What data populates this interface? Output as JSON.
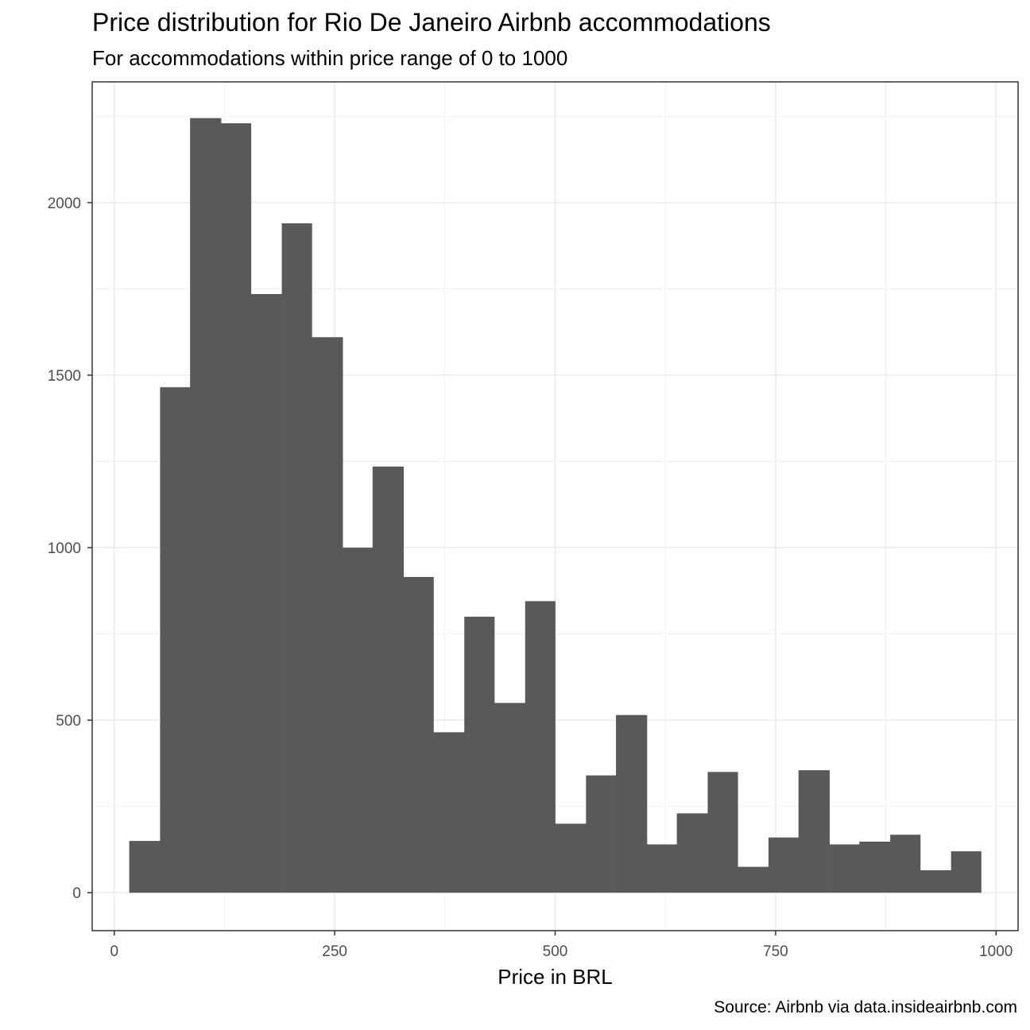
{
  "chart_data": {
    "type": "bar",
    "title": "Price distribution for Rio De Janeiro Airbnb accommodations",
    "subtitle": "For accommodations within price range of 0 to 1000",
    "xlabel": "Price in BRL",
    "ylabel": "",
    "caption": "Source: Airbnb via data.insideairbnb.com",
    "xlim": [
      -25,
      1025
    ],
    "ylim": [
      -110,
      2350
    ],
    "x_ticks": [
      0,
      250,
      500,
      750,
      1000
    ],
    "y_ticks": [
      0,
      500,
      1000,
      1500,
      2000
    ],
    "grid": true,
    "bar_color": "#595959",
    "bins": [
      {
        "x_start": 17,
        "x_end": 52,
        "count": 150
      },
      {
        "x_start": 52,
        "x_end": 86,
        "count": 1465
      },
      {
        "x_start": 86,
        "x_end": 121,
        "count": 2245
      },
      {
        "x_start": 121,
        "x_end": 155,
        "count": 2230
      },
      {
        "x_start": 155,
        "x_end": 190,
        "count": 1735
      },
      {
        "x_start": 190,
        "x_end": 224,
        "count": 1940
      },
      {
        "x_start": 224,
        "x_end": 259,
        "count": 1610
      },
      {
        "x_start": 259,
        "x_end": 293,
        "count": 1000
      },
      {
        "x_start": 293,
        "x_end": 328,
        "count": 1235
      },
      {
        "x_start": 328,
        "x_end": 362,
        "count": 915
      },
      {
        "x_start": 362,
        "x_end": 397,
        "count": 465
      },
      {
        "x_start": 397,
        "x_end": 431,
        "count": 800
      },
      {
        "x_start": 431,
        "x_end": 466,
        "count": 550
      },
      {
        "x_start": 466,
        "x_end": 500,
        "count": 845
      },
      {
        "x_start": 500,
        "x_end": 535,
        "count": 200
      },
      {
        "x_start": 535,
        "x_end": 569,
        "count": 340
      },
      {
        "x_start": 569,
        "x_end": 604,
        "count": 515
      },
      {
        "x_start": 604,
        "x_end": 638,
        "count": 140
      },
      {
        "x_start": 638,
        "x_end": 673,
        "count": 230
      },
      {
        "x_start": 673,
        "x_end": 707,
        "count": 350
      },
      {
        "x_start": 707,
        "x_end": 742,
        "count": 75
      },
      {
        "x_start": 742,
        "x_end": 776,
        "count": 160
      },
      {
        "x_start": 776,
        "x_end": 811,
        "count": 355
      },
      {
        "x_start": 811,
        "x_end": 845,
        "count": 140
      },
      {
        "x_start": 845,
        "x_end": 880,
        "count": 148
      },
      {
        "x_start": 880,
        "x_end": 914,
        "count": 168
      },
      {
        "x_start": 914,
        "x_end": 949,
        "count": 65
      },
      {
        "x_start": 949,
        "x_end": 983,
        "count": 120
      }
    ]
  }
}
